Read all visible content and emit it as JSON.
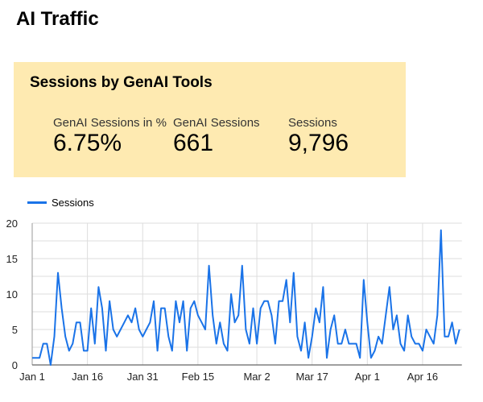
{
  "page": {
    "title": "AI Traffic"
  },
  "banner": {
    "title": "Sessions by GenAI Tools",
    "kpis": [
      {
        "label": "GenAI Sessions in %",
        "value": "6.75%"
      },
      {
        "label": "GenAI Sessions",
        "value": "661"
      },
      {
        "label": "Sessions",
        "value": "9,796"
      }
    ],
    "bg": "#feeab1"
  },
  "chart_data": {
    "type": "line",
    "legend": "top-left",
    "grid": true,
    "ylim": [
      0,
      20
    ],
    "yticks": [
      0,
      5,
      10,
      15,
      20
    ],
    "xticks": [
      "Jan 1",
      "Jan 16",
      "Jan 31",
      "Feb 15",
      "Mar 2",
      "Mar 17",
      "Apr 1",
      "Apr 16"
    ],
    "x": [
      "Jan 1",
      "Jan 2",
      "Jan 3",
      "Jan 4",
      "Jan 5",
      "Jan 6",
      "Jan 7",
      "Jan 8",
      "Jan 9",
      "Jan 10",
      "Jan 11",
      "Jan 12",
      "Jan 13",
      "Jan 14",
      "Jan 15",
      "Jan 16",
      "Jan 17",
      "Jan 18",
      "Jan 19",
      "Jan 20",
      "Jan 21",
      "Jan 22",
      "Jan 23",
      "Jan 24",
      "Jan 25",
      "Jan 26",
      "Jan 27",
      "Jan 28",
      "Jan 29",
      "Jan 30",
      "Jan 31",
      "Feb 1",
      "Feb 2",
      "Feb 3",
      "Feb 4",
      "Feb 5",
      "Feb 6",
      "Feb 7",
      "Feb 8",
      "Feb 9",
      "Feb 10",
      "Feb 11",
      "Feb 12",
      "Feb 13",
      "Feb 14",
      "Feb 15",
      "Feb 16",
      "Feb 17",
      "Feb 18",
      "Feb 19",
      "Feb 20",
      "Feb 21",
      "Feb 22",
      "Feb 23",
      "Feb 24",
      "Feb 25",
      "Feb 26",
      "Feb 27",
      "Feb 28",
      "Feb 29",
      "Mar 1",
      "Mar 2",
      "Mar 3",
      "Mar 4",
      "Mar 5",
      "Mar 6",
      "Mar 7",
      "Mar 8",
      "Mar 9",
      "Mar 10",
      "Mar 11",
      "Mar 12",
      "Mar 13",
      "Mar 14",
      "Mar 15",
      "Mar 16",
      "Mar 17",
      "Mar 18",
      "Mar 19",
      "Mar 20",
      "Mar 21",
      "Mar 22",
      "Mar 23",
      "Mar 24",
      "Mar 25",
      "Mar 26",
      "Mar 27",
      "Mar 28",
      "Mar 29",
      "Mar 30",
      "Mar 31",
      "Apr 1",
      "Apr 2",
      "Apr 3",
      "Apr 4",
      "Apr 5",
      "Apr 6",
      "Apr 7",
      "Apr 8",
      "Apr 9",
      "Apr 10",
      "Apr 11",
      "Apr 12",
      "Apr 13",
      "Apr 14",
      "Apr 15",
      "Apr 16",
      "Apr 17",
      "Apr 18",
      "Apr 19",
      "Apr 20",
      "Apr 21",
      "Apr 22",
      "Apr 23",
      "Apr 24",
      "Apr 25",
      "Apr 26"
    ],
    "series": [
      {
        "name": "Sessions",
        "color": "#1a73e8",
        "values": [
          1,
          1,
          1,
          3,
          3,
          0,
          4,
          13,
          8,
          4,
          2,
          3,
          6,
          6,
          2,
          2,
          8,
          3,
          11,
          8,
          2,
          9,
          5,
          4,
          5,
          6,
          7,
          6,
          8,
          5,
          4,
          5,
          6,
          9,
          2,
          8,
          8,
          4,
          2,
          9,
          6,
          9,
          2,
          8,
          9,
          7,
          6,
          5,
          14,
          7,
          3,
          6,
          3,
          2,
          10,
          6,
          7,
          14,
          5,
          3,
          8,
          3,
          8,
          9,
          9,
          7,
          3,
          9,
          9,
          12,
          6,
          13,
          4,
          2,
          6,
          1,
          4,
          8,
          6,
          11,
          1,
          5,
          7,
          3,
          3,
          5,
          3,
          3,
          3,
          1,
          12,
          6,
          1,
          2,
          4,
          3,
          7,
          11,
          5,
          7,
          3,
          2,
          7,
          4,
          3,
          3,
          2,
          5,
          4,
          3,
          7,
          19,
          4,
          4,
          6,
          3,
          5
        ]
      }
    ]
  }
}
